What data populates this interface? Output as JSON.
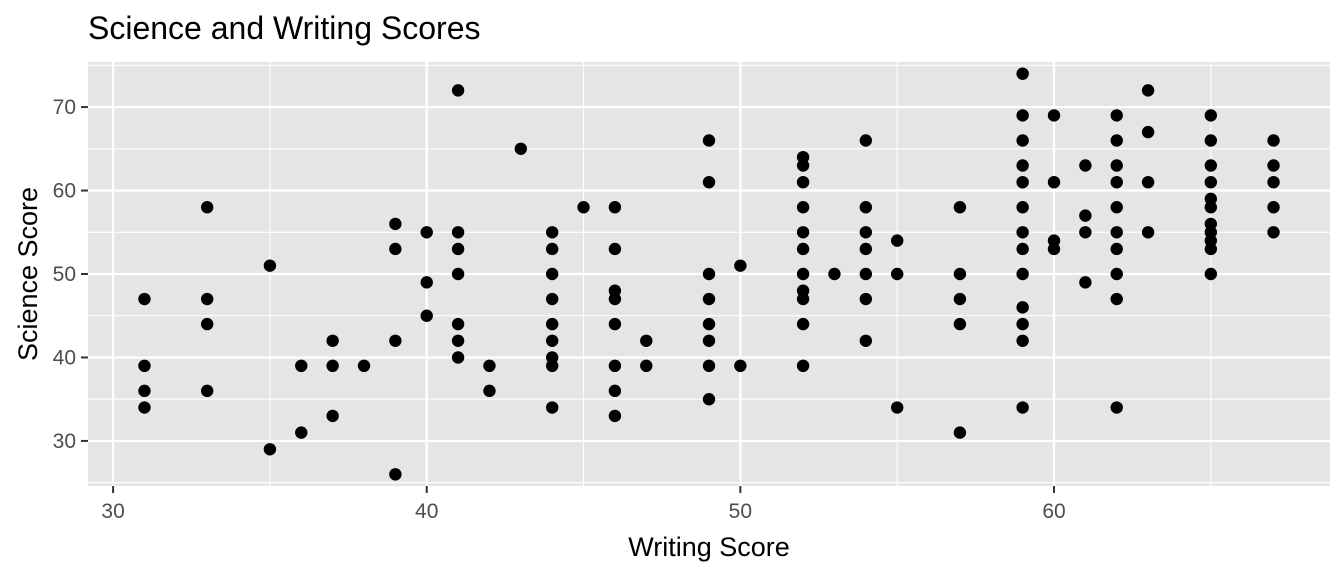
{
  "chart_data": {
    "type": "scatter",
    "title": "Science and Writing Scores",
    "xlabel": "Writing Score",
    "ylabel": "Science Score",
    "xlim": [
      29.2,
      68.8
    ],
    "ylim": [
      24.6,
      75.4
    ],
    "xticks": [
      30,
      40,
      50,
      60
    ],
    "yticks": [
      30,
      40,
      50,
      60,
      70
    ],
    "grid": true,
    "colors": {
      "panel": "#e5e5e5",
      "grid": "#ffffff",
      "point": "#000000"
    },
    "points": [
      [
        31,
        47
      ],
      [
        31,
        39
      ],
      [
        31,
        36
      ],
      [
        31,
        34
      ],
      [
        33,
        58
      ],
      [
        33,
        47
      ],
      [
        33,
        44
      ],
      [
        33,
        36
      ],
      [
        35,
        51
      ],
      [
        35,
        29
      ],
      [
        36,
        39
      ],
      [
        36,
        31
      ],
      [
        37,
        42
      ],
      [
        37,
        39
      ],
      [
        37,
        33
      ],
      [
        38,
        39
      ],
      [
        39,
        56
      ],
      [
        39,
        53
      ],
      [
        39,
        42
      ],
      [
        39,
        26
      ],
      [
        40,
        55
      ],
      [
        40,
        49
      ],
      [
        40,
        45
      ],
      [
        41,
        72
      ],
      [
        41,
        55
      ],
      [
        41,
        53
      ],
      [
        41,
        50
      ],
      [
        41,
        44
      ],
      [
        41,
        42
      ],
      [
        41,
        40
      ],
      [
        42,
        39
      ],
      [
        42,
        36
      ],
      [
        43,
        65
      ],
      [
        44,
        55
      ],
      [
        44,
        53
      ],
      [
        44,
        50
      ],
      [
        44,
        47
      ],
      [
        44,
        44
      ],
      [
        44,
        42
      ],
      [
        44,
        40
      ],
      [
        44,
        39
      ],
      [
        44,
        34
      ],
      [
        45,
        58
      ],
      [
        46,
        58
      ],
      [
        46,
        53
      ],
      [
        46,
        48
      ],
      [
        46,
        47
      ],
      [
        46,
        44
      ],
      [
        46,
        39
      ],
      [
        46,
        36
      ],
      [
        46,
        33
      ],
      [
        47,
        42
      ],
      [
        47,
        39
      ],
      [
        49,
        66
      ],
      [
        49,
        61
      ],
      [
        49,
        50
      ],
      [
        49,
        47
      ],
      [
        49,
        44
      ],
      [
        49,
        42
      ],
      [
        49,
        39
      ],
      [
        49,
        35
      ],
      [
        50,
        51
      ],
      [
        50,
        39
      ],
      [
        52,
        64
      ],
      [
        52,
        63
      ],
      [
        52,
        61
      ],
      [
        52,
        58
      ],
      [
        52,
        55
      ],
      [
        52,
        53
      ],
      [
        52,
        50
      ],
      [
        52,
        48
      ],
      [
        52,
        47
      ],
      [
        52,
        44
      ],
      [
        52,
        39
      ],
      [
        53,
        50
      ],
      [
        54,
        66
      ],
      [
        54,
        58
      ],
      [
        54,
        55
      ],
      [
        54,
        53
      ],
      [
        54,
        50
      ],
      [
        54,
        47
      ],
      [
        54,
        42
      ],
      [
        55,
        54
      ],
      [
        55,
        50
      ],
      [
        55,
        34
      ],
      [
        57,
        58
      ],
      [
        57,
        50
      ],
      [
        57,
        47
      ],
      [
        57,
        44
      ],
      [
        57,
        31
      ],
      [
        59,
        74
      ],
      [
        59,
        69
      ],
      [
        59,
        66
      ],
      [
        59,
        63
      ],
      [
        59,
        61
      ],
      [
        59,
        58
      ],
      [
        59,
        55
      ],
      [
        59,
        53
      ],
      [
        59,
        50
      ],
      [
        59,
        46
      ],
      [
        59,
        44
      ],
      [
        59,
        42
      ],
      [
        59,
        34
      ],
      [
        60,
        69
      ],
      [
        60,
        61
      ],
      [
        60,
        54
      ],
      [
        60,
        53
      ],
      [
        61,
        63
      ],
      [
        61,
        57
      ],
      [
        61,
        55
      ],
      [
        61,
        49
      ],
      [
        62,
        69
      ],
      [
        62,
        66
      ],
      [
        62,
        63
      ],
      [
        62,
        61
      ],
      [
        62,
        58
      ],
      [
        62,
        55
      ],
      [
        62,
        53
      ],
      [
        62,
        50
      ],
      [
        62,
        47
      ],
      [
        62,
        34
      ],
      [
        63,
        72
      ],
      [
        63,
        67
      ],
      [
        63,
        61
      ],
      [
        63,
        55
      ],
      [
        65,
        69
      ],
      [
        65,
        66
      ],
      [
        65,
        63
      ],
      [
        65,
        61
      ],
      [
        65,
        59
      ],
      [
        65,
        58
      ],
      [
        65,
        56
      ],
      [
        65,
        55
      ],
      [
        65,
        54
      ],
      [
        65,
        53
      ],
      [
        65,
        50
      ],
      [
        67,
        66
      ],
      [
        67,
        63
      ],
      [
        67,
        61
      ],
      [
        67,
        58
      ],
      [
        67,
        55
      ]
    ]
  }
}
